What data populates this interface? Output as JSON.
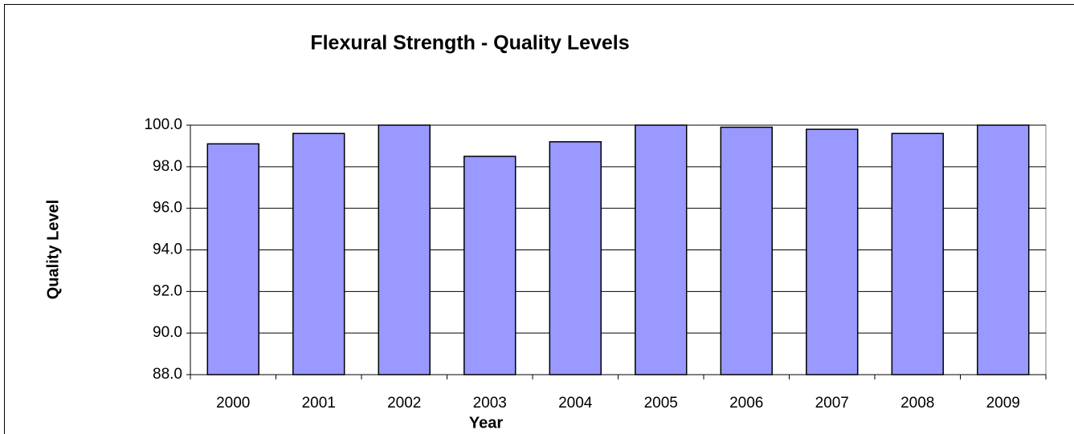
{
  "chart_data": {
    "type": "bar",
    "title": "Flexural Strength - Quality Levels",
    "x_label": "Year",
    "y_label": "Quality Level",
    "categories": [
      "2000",
      "2001",
      "2002",
      "2003",
      "2004",
      "2005",
      "2006",
      "2007",
      "2008",
      "2009"
    ],
    "values": [
      99.1,
      99.6,
      100.0,
      98.5,
      99.2,
      100.0,
      99.9,
      99.8,
      99.6,
      100.0
    ],
    "color": "#9999ff",
    "ylim": [
      88,
      100
    ],
    "yticks": [
      {
        "value": 88,
        "label": "88.0"
      },
      {
        "value": 90,
        "label": "90.0"
      },
      {
        "value": 92,
        "label": "92.0"
      },
      {
        "value": 94,
        "label": "94.0"
      },
      {
        "value": 96,
        "label": "96.0"
      },
      {
        "value": 98,
        "label": "98.0"
      },
      {
        "value": 100,
        "label": "100.0"
      }
    ],
    "grid": true
  }
}
